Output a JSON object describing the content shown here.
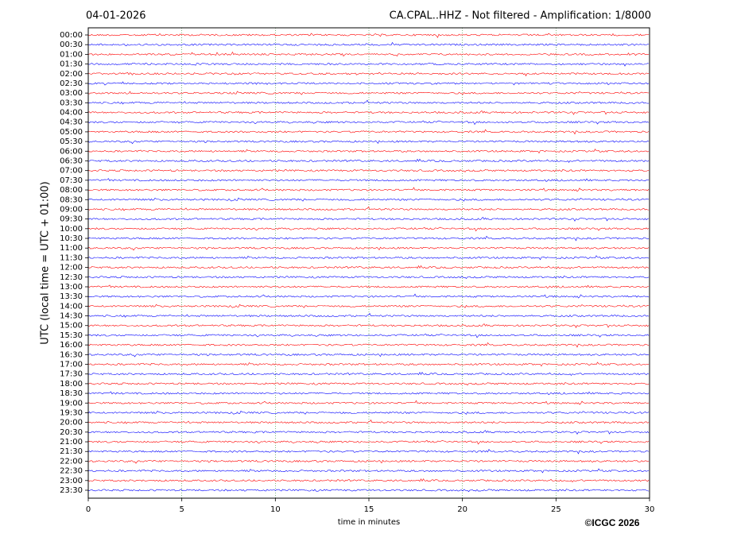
{
  "chart_data": {
    "type": "helicorder",
    "title": "CA.CPAL..HHZ - Not filtered - Amplification: 1/8000",
    "subtitle": "04-01-2026",
    "xlabel": "time in minutes",
    "ylabel": "UTC (local time = UTC + 01:00)",
    "annotation": "©ICGC 2026",
    "categories": [
      "00:00",
      "00:30",
      "01:00",
      "01:30",
      "02:00",
      "02:30",
      "03:00",
      "03:30",
      "04:00",
      "04:30",
      "05:00",
      "05:30",
      "06:00",
      "06:30",
      "07:00",
      "07:30",
      "08:00",
      "08:30",
      "09:00",
      "09:30",
      "10:00",
      "10:30",
      "11:00",
      "11:30",
      "12:00",
      "12:30",
      "13:00",
      "13:30",
      "14:00",
      "14:30",
      "15:00",
      "15:30",
      "16:00",
      "16:30",
      "17:00",
      "17:30",
      "18:00",
      "18:30",
      "19:00",
      "19:30",
      "20:00",
      "20:30",
      "21:00",
      "21:30",
      "22:00",
      "22:30",
      "23:00",
      "23:30"
    ],
    "xlim": [
      0,
      30
    ],
    "xticks": [
      0,
      5,
      10,
      15,
      20,
      25,
      30
    ],
    "grid": true,
    "colors": [
      "#ff0000",
      "#0000ff"
    ]
  }
}
